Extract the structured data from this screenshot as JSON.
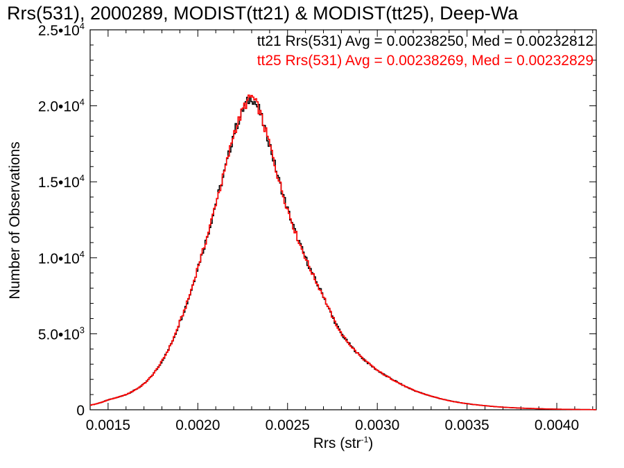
{
  "title": "Rrs(531), 2000289, MODIST(tt21) & MODIST(tt25), Deep-Wa",
  "ylabel": "Number of Observations",
  "xlabel_main": "Rrs (str",
  "xlabel_exp": "-1",
  "xlabel_end": ")",
  "annotations": [
    {
      "text": "tt21 Rrs(531) Avg = 0.00238250, Med = 0.00232812",
      "color": "#000000"
    },
    {
      "text": "tt25 Rrs(531) Avg = 0.00238269, Med = 0.00232829",
      "color": "#ff0000"
    }
  ],
  "chart_data": {
    "type": "histogram",
    "xlim": [
      0.0014,
      0.00422
    ],
    "ylim": [
      0,
      25000
    ],
    "xticks": [
      {
        "value": 0.0015,
        "label": "0.0015"
      },
      {
        "value": 0.002,
        "label": "0.0020"
      },
      {
        "value": 0.0025,
        "label": "0.0025"
      },
      {
        "value": 0.003,
        "label": "0.0030"
      },
      {
        "value": 0.0035,
        "label": "0.0035"
      },
      {
        "value": 0.004,
        "label": "0.0040"
      }
    ],
    "yticks": [
      {
        "value": 0,
        "label": "0",
        "mant": "",
        "exp": ""
      },
      {
        "value": 5000,
        "label": "",
        "mant": "5.0•10",
        "exp": "3"
      },
      {
        "value": 10000,
        "label": "",
        "mant": "1.0•10",
        "exp": "4"
      },
      {
        "value": 15000,
        "label": "",
        "mant": "1.5•10",
        "exp": "4"
      },
      {
        "value": 20000,
        "label": "",
        "mant": "2.0•10",
        "exp": "4"
      },
      {
        "value": 25000,
        "label": "",
        "mant": "2.5•10",
        "exp": "4"
      }
    ],
    "grid": false,
    "legend": "top-right text annotations",
    "series": [
      {
        "color": "#000000",
        "curve": [
          [
            0.0014,
            300
          ],
          [
            0.0015,
            650
          ],
          [
            0.0016,
            1000
          ],
          [
            0.0017,
            1700
          ],
          [
            0.0018,
            3200
          ],
          [
            0.0019,
            5800
          ],
          [
            0.002,
            9400
          ],
          [
            0.0021,
            13600
          ],
          [
            0.0022,
            18200
          ],
          [
            0.00226,
            20000
          ],
          [
            0.0023,
            20600
          ],
          [
            0.00234,
            19800
          ],
          [
            0.0024,
            17500
          ],
          [
            0.0025,
            13200
          ],
          [
            0.0026,
            10000
          ],
          [
            0.0027,
            7500
          ],
          [
            0.0028,
            5000
          ],
          [
            0.0029,
            3600
          ],
          [
            0.003,
            2600
          ],
          [
            0.0031,
            1900
          ],
          [
            0.0032,
            1300
          ],
          [
            0.0033,
            900
          ],
          [
            0.0034,
            600
          ],
          [
            0.0035,
            400
          ],
          [
            0.0036,
            270
          ],
          [
            0.0037,
            170
          ],
          [
            0.0038,
            110
          ],
          [
            0.0039,
            70
          ],
          [
            0.004,
            40
          ],
          [
            0.0041,
            20
          ],
          [
            0.00422,
            10
          ]
        ]
      },
      {
        "color": "#ff0000",
        "curve": [
          [
            0.0014,
            300
          ],
          [
            0.0015,
            650
          ],
          [
            0.0016,
            1000
          ],
          [
            0.0017,
            1700
          ],
          [
            0.0018,
            3200
          ],
          [
            0.0019,
            5800
          ],
          [
            0.002,
            9400
          ],
          [
            0.0021,
            13600
          ],
          [
            0.0022,
            18200
          ],
          [
            0.00226,
            20000
          ],
          [
            0.0023,
            20650
          ],
          [
            0.00234,
            19800
          ],
          [
            0.0024,
            17500
          ],
          [
            0.0025,
            13200
          ],
          [
            0.0026,
            10000
          ],
          [
            0.0027,
            7500
          ],
          [
            0.0028,
            5000
          ],
          [
            0.0029,
            3600
          ],
          [
            0.003,
            2600
          ],
          [
            0.0031,
            1900
          ],
          [
            0.0032,
            1300
          ],
          [
            0.0033,
            900
          ],
          [
            0.0034,
            600
          ],
          [
            0.0035,
            400
          ],
          [
            0.0036,
            270
          ],
          [
            0.0037,
            170
          ],
          [
            0.0038,
            110
          ],
          [
            0.0039,
            70
          ],
          [
            0.004,
            40
          ],
          [
            0.0041,
            20
          ],
          [
            0.00422,
            10
          ]
        ]
      }
    ]
  }
}
